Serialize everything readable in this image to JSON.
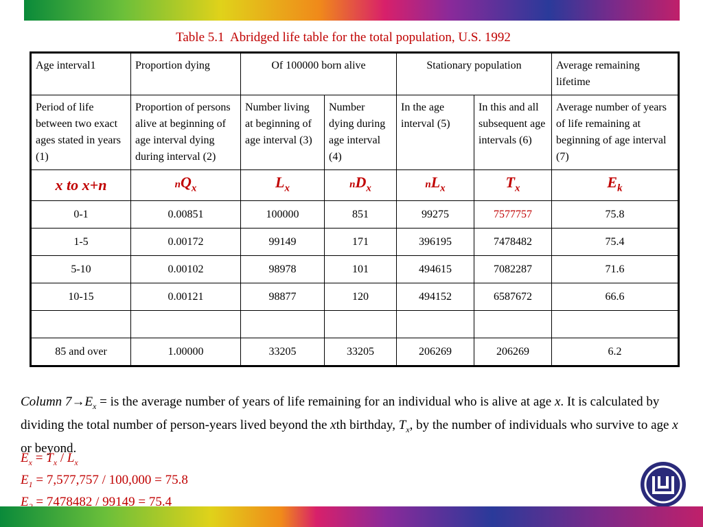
{
  "title": "Table 5.1  Abridged life table for the total population, U.S. 1992",
  "table": {
    "header_row1": [
      "Age interval1",
      "Proportion dying",
      "Of 100000 born alive",
      "Stationary population",
      "Average remaining lifetime"
    ],
    "header_row2": [
      "Period of life between two exact ages stated in years (1)",
      "Proportion of persons alive at beginning of age interval dying during interval (2)",
      "Number living at beginning of age interval (3)",
      "Number dying during age interval (4)",
      "In the age interval (5)",
      "In this and all subsequent age intervals (6)",
      "Average number of years of life remaining at beginning of age interval (7)"
    ],
    "symbols": [
      [
        "x to x+n"
      ],
      [
        "n",
        "Q",
        "x"
      ],
      [
        "L",
        "x"
      ],
      [
        "n",
        "D",
        "x"
      ],
      [
        "n",
        "L",
        "x"
      ],
      [
        "T",
        "x"
      ],
      [
        "E",
        "k"
      ]
    ],
    "rows": [
      [
        "0-1",
        "0.00851",
        "100000",
        "851",
        "99275",
        "7577757",
        "75.8"
      ],
      [
        "1-5",
        "0.00172",
        "99149",
        "171",
        "396195",
        "7478482",
        "75.4"
      ],
      [
        "5-10",
        "0.00102",
        "98978",
        "101",
        "494615",
        "7082287",
        "71.6"
      ],
      [
        "10-15",
        "0.00121",
        "98877",
        "120",
        "494152",
        "6587672",
        "66.6"
      ],
      [
        "85 and over",
        "1.00000",
        "33205",
        "33205",
        "206269",
        "206269",
        "6.2"
      ]
    ]
  },
  "notes": {
    "paragraph": [
      "Column 7",
      "→",
      "E",
      "x",
      " = is the average number of years of life remaining for an individual who is alive at age ",
      "x",
      ". It is calculated by dividing the total number of person-years lived beyond the ",
      "x",
      "th birthday, ",
      "T",
      "x",
      ", by the number of individuals who survive to age ",
      "x",
      " or beyond."
    ],
    "formulas": [
      [
        "E",
        "x",
        " = ",
        "T",
        "x",
        " / ",
        "L",
        "x"
      ],
      [
        "E",
        "1",
        " = 7,577,757 / 100,000 = 75.8"
      ],
      [
        "E",
        "2",
        " = 7478482 / 99149 = 75.4"
      ]
    ]
  }
}
